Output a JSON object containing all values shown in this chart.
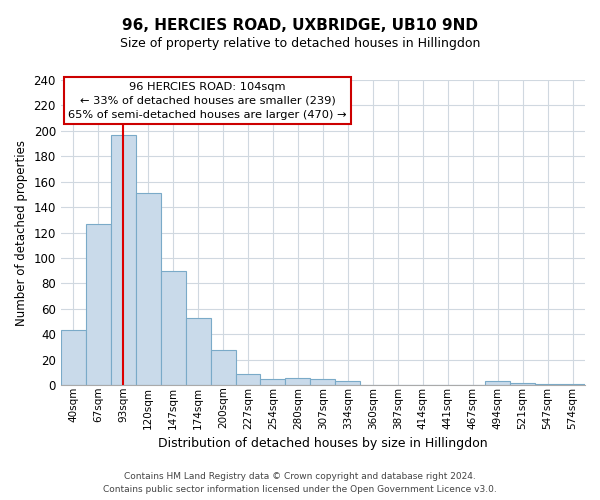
{
  "title": "96, HERCIES ROAD, UXBRIDGE, UB10 9ND",
  "subtitle": "Size of property relative to detached houses in Hillingdon",
  "xlabel": "Distribution of detached houses by size in Hillingdon",
  "ylabel": "Number of detached properties",
  "bar_labels": [
    "40sqm",
    "67sqm",
    "93sqm",
    "120sqm",
    "147sqm",
    "174sqm",
    "200sqm",
    "227sqm",
    "254sqm",
    "280sqm",
    "307sqm",
    "334sqm",
    "360sqm",
    "387sqm",
    "414sqm",
    "441sqm",
    "467sqm",
    "494sqm",
    "521sqm",
    "547sqm",
    "574sqm"
  ],
  "bar_values": [
    43,
    127,
    197,
    151,
    90,
    53,
    28,
    9,
    5,
    6,
    5,
    3,
    0,
    0,
    0,
    0,
    0,
    3,
    2,
    1,
    1
  ],
  "bar_color": "#c9daea",
  "bar_edge_color": "#7aaac8",
  "vline_index": 2,
  "vline_color": "#dd0000",
  "ylim": [
    0,
    240
  ],
  "yticks": [
    0,
    20,
    40,
    60,
    80,
    100,
    120,
    140,
    160,
    180,
    200,
    220,
    240
  ],
  "annotation_title": "96 HERCIES ROAD: 104sqm",
  "annotation_line1": "← 33% of detached houses are smaller (239)",
  "annotation_line2": "65% of semi-detached houses are larger (470) →",
  "annotation_box_facecolor": "#ffffff",
  "annotation_box_edgecolor": "#cc0000",
  "footer1": "Contains HM Land Registry data © Crown copyright and database right 2024.",
  "footer2": "Contains public sector information licensed under the Open Government Licence v3.0.",
  "bg_color": "#ffffff",
  "plot_bg_color": "#ffffff",
  "grid_color": "#d0d8e0"
}
